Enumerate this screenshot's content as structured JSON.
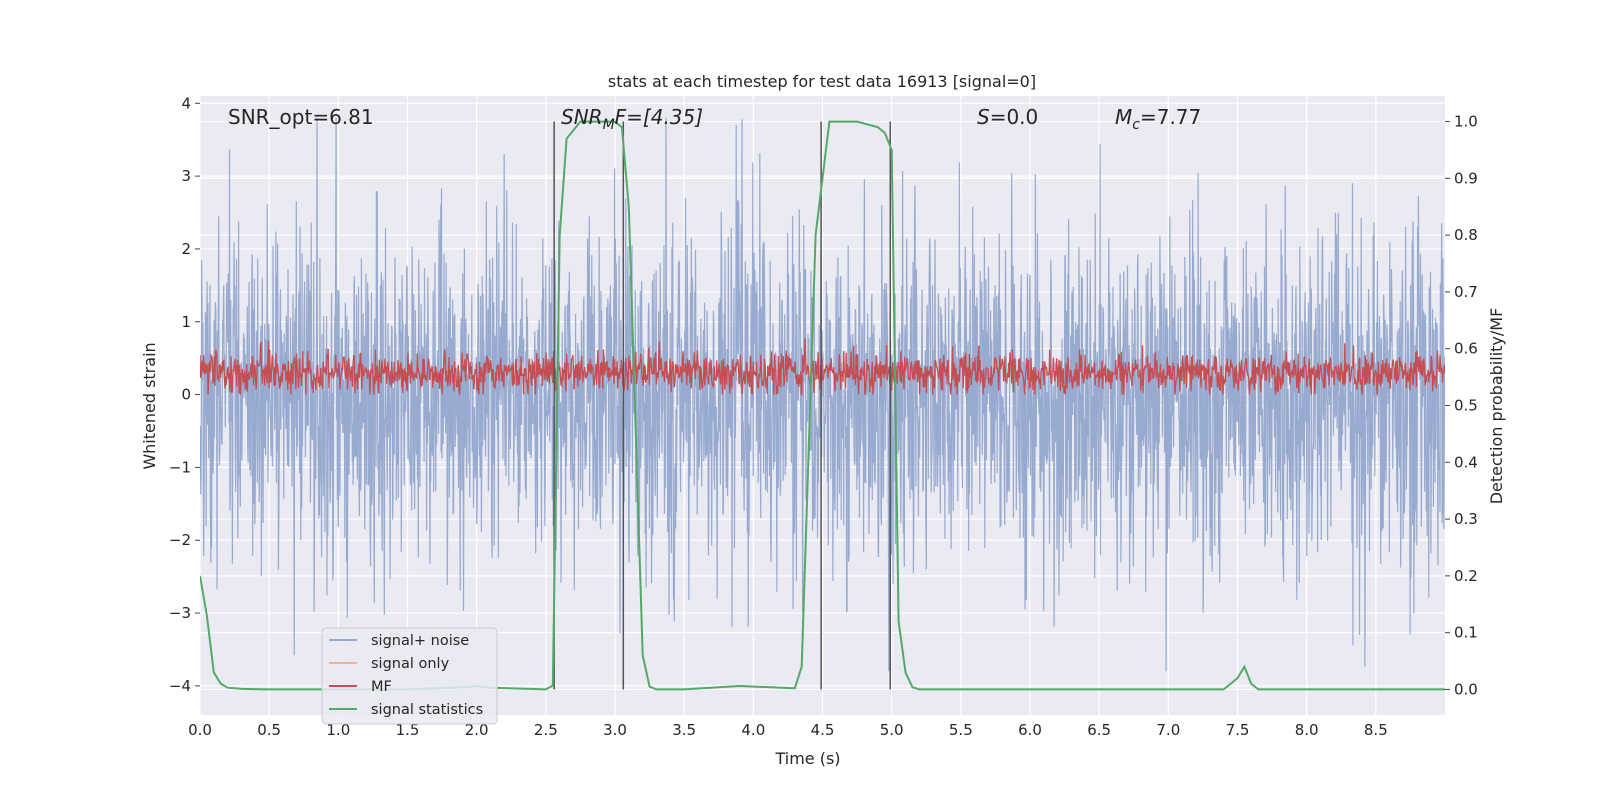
{
  "chart_data": {
    "type": "line",
    "title": "stats at each timestep for test data 16913 [signal=0]",
    "xlabel": "Time (s)",
    "ylabel_left": "Whitened strain",
    "ylabel_right": "Detection probability/MF",
    "xlim": [
      0.0,
      9.0
    ],
    "ylim_left": [
      -4.4,
      4.1
    ],
    "ylim_right": [
      -0.045,
      1.045
    ],
    "xticks": [
      "0.0",
      "0.5",
      "1.0",
      "1.5",
      "2.0",
      "2.5",
      "3.0",
      "3.5",
      "4.0",
      "4.5",
      "5.0",
      "5.5",
      "6.0",
      "6.5",
      "7.0",
      "7.5",
      "8.0",
      "8.5"
    ],
    "yticks_left": [
      "4",
      "3",
      "2",
      "1",
      "0",
      "−1",
      "−2",
      "−3",
      "−4"
    ],
    "yticks_right": [
      "1.0",
      "0.9",
      "0.8",
      "0.7",
      "0.6",
      "0.5",
      "0.4",
      "0.3",
      "0.2",
      "0.1",
      "0.0"
    ],
    "annotations": {
      "snr_opt": "SNR_opt=6.81",
      "snr_mf_base": "SNR",
      "snr_mf_sub": "M",
      "snr_mf_rest": "F=[4.35]",
      "s_var": "S",
      "s_rest": "=0.0",
      "mc_var": "M",
      "mc_sub": "c",
      "mc_rest": "=7.77"
    },
    "legend": {
      "location": "lower left",
      "entries": [
        {
          "label": "signal+ noise",
          "color": "#98aacf"
        },
        {
          "label": "signal only",
          "color": "#f0b39a"
        },
        {
          "label": "MF",
          "color": "#c44e52"
        },
        {
          "label": "signal statistics",
          "color": "#55a868"
        }
      ]
    },
    "vlines_time": [
      2.56,
      3.06,
      4.49,
      4.99
    ],
    "series": [
      {
        "name": "signal+ noise",
        "kind": "noise",
        "axis": "left",
        "envelope_abs_max": 3.8,
        "std": 1.0
      },
      {
        "name": "MF",
        "kind": "noise",
        "axis": "left",
        "mean": 0.3,
        "range": [
          0.0,
          1.0
        ]
      },
      {
        "name": "signal statistics",
        "axis": "right",
        "x": [
          0.0,
          0.05,
          0.1,
          0.15,
          0.2,
          0.3,
          0.5,
          1.0,
          1.5,
          1.9,
          2.0,
          2.1,
          2.5,
          2.55,
          2.6,
          2.65,
          2.75,
          3.0,
          3.05,
          3.1,
          3.15,
          3.2,
          3.25,
          3.3,
          3.5,
          3.9,
          4.3,
          4.35,
          4.45,
          4.5,
          4.55,
          4.6,
          4.75,
          4.9,
          4.95,
          5.0,
          5.05,
          5.1,
          5.15,
          5.2,
          5.3,
          6.0,
          7.0,
          7.4,
          7.5,
          7.55,
          7.6,
          7.65,
          7.7,
          8.0,
          8.5,
          9.0
        ],
        "y": [
          0.2,
          0.13,
          0.03,
          0.01,
          0.003,
          0.001,
          0.0,
          0.0,
          0.0,
          0.004,
          0.006,
          0.003,
          0.0,
          0.007,
          0.8,
          0.97,
          1.0,
          1.0,
          0.99,
          0.85,
          0.45,
          0.06,
          0.005,
          0.0,
          0.0,
          0.006,
          0.002,
          0.04,
          0.8,
          0.9,
          1.0,
          1.0,
          1.0,
          0.99,
          0.98,
          0.95,
          0.12,
          0.03,
          0.004,
          0.0,
          0.0,
          0.0,
          0.0,
          0.0,
          0.02,
          0.04,
          0.01,
          0.0,
          0.0,
          0.0,
          0.0,
          0.0
        ]
      }
    ]
  }
}
